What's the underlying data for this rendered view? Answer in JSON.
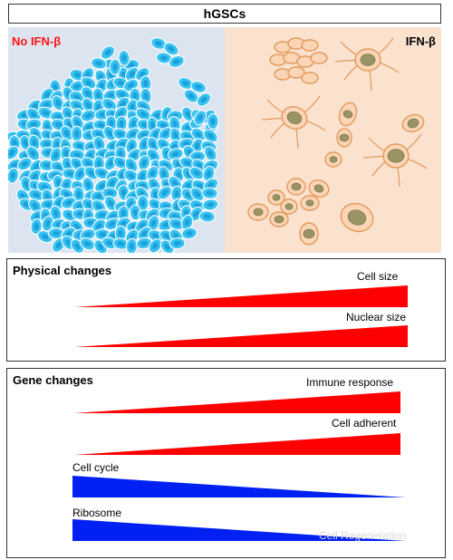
{
  "title": "hGSCs",
  "cells": {
    "left_label": "No IFN-β",
    "right_label": "IFN-β",
    "colors": {
      "left_bg": "#dce4ef",
      "right_bg": "#fae2cf",
      "blue_cell": "#39c2f1",
      "blue_nucleus": "#1aa1da",
      "orange_outline": "#e39a5a",
      "orange_fill": "#fbd5b5",
      "nucleus_green": "#9a9464",
      "label_red": "#ff1414"
    }
  },
  "physical": {
    "title": "Physical changes",
    "items": [
      {
        "label": "Cell size",
        "trend": "increase",
        "color": "#ff0000"
      },
      {
        "label": "Nuclear size",
        "trend": "increase",
        "color": "#ff0000"
      }
    ]
  },
  "gene": {
    "title": "Gene changes",
    "items": [
      {
        "label": "Immune response",
        "trend": "increase",
        "color": "#ff0000"
      },
      {
        "label": "Cell adherent",
        "trend": "increase",
        "color": "#ff0000"
      },
      {
        "label": "Cell cycle",
        "trend": "decrease",
        "color": "#0021f2"
      },
      {
        "label": "Ribosome",
        "trend": "decrease",
        "color": "#0021f2"
      }
    ]
  },
  "watermark": "Cell Regeneration"
}
